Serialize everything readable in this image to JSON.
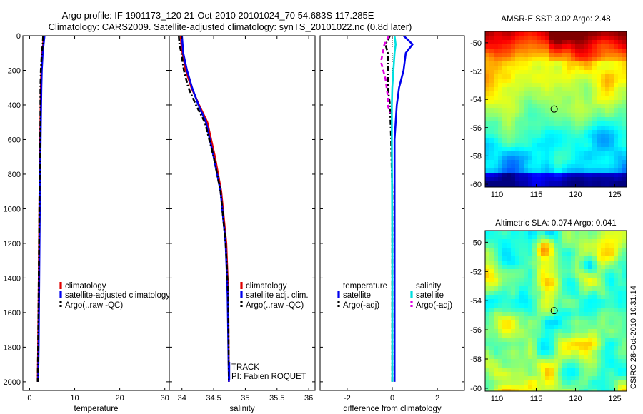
{
  "header": {
    "title_line1": "Argo profile: IF 1901173_120 21-Oct-2010 20101024_70 54.683S 117.285E",
    "title_line2": "Climatology: CARS2009. Satellite-adjusted climatology: synTS_20101022.nc (0.8d later)"
  },
  "colors": {
    "climatology": "#e00000",
    "satellite": "#0000ee",
    "argo": "#000000",
    "satellite_sal": "#00e0e0",
    "argo_sal": "#e000e0"
  },
  "chart_data": [
    {
      "id": "temperature",
      "type": "line",
      "xlabel": "temperature",
      "ylabel": "",
      "xlim": [
        -1.5,
        31
      ],
      "ylim": [
        2050,
        0
      ],
      "x_ticks": [
        0,
        10,
        20,
        30
      ],
      "y_ticks": [
        0,
        200,
        400,
        600,
        800,
        1000,
        1200,
        1400,
        1600,
        1800,
        2000
      ],
      "legend_location": "lower-middle",
      "series": [
        {
          "name": "climatology",
          "color": "climatology",
          "style": "solid",
          "x": [
            3.1,
            3.0,
            2.8,
            2.6,
            2.5,
            2.4,
            2.3,
            2.2,
            2.1,
            2.0,
            1.9,
            1.8
          ],
          "y": [
            0,
            50,
            100,
            200,
            300,
            500,
            700,
            900,
            1200,
            1500,
            1800,
            2000
          ]
        },
        {
          "name": "satellite-adjusted climatology",
          "color": "satellite",
          "style": "solid",
          "x": [
            3.3,
            3.1,
            2.9,
            2.7,
            2.6,
            2.5,
            2.4,
            2.3,
            2.2,
            2.1,
            2.0,
            1.9
          ],
          "y": [
            0,
            50,
            100,
            200,
            300,
            500,
            700,
            900,
            1200,
            1500,
            1800,
            2000
          ]
        },
        {
          "name": "Argo(..raw -QC)",
          "color": "argo",
          "style": "dashdot",
          "x": [
            3.0,
            2.9,
            2.7,
            2.5,
            2.4,
            2.4,
            2.3,
            2.2,
            2.1,
            2.0,
            1.9,
            1.8
          ],
          "y": [
            0,
            50,
            100,
            200,
            300,
            500,
            700,
            900,
            1200,
            1500,
            1800,
            2000
          ]
        }
      ]
    },
    {
      "id": "salinity",
      "type": "line",
      "xlabel": "salinity",
      "ylabel": "",
      "xlim": [
        33.8,
        36.1
      ],
      "ylim": [
        2050,
        0
      ],
      "x_ticks": [
        34,
        34.5,
        35,
        35.5,
        36
      ],
      "legend_location": "lower-middle",
      "series": [
        {
          "name": "climatology",
          "color": "climatology",
          "style": "solid",
          "x": [
            33.98,
            33.99,
            34.01,
            34.06,
            34.15,
            34.27,
            34.4,
            34.52,
            34.62,
            34.7,
            34.73,
            34.74
          ],
          "y": [
            0,
            50,
            100,
            200,
            300,
            400,
            500,
            700,
            900,
            1200,
            1500,
            2000
          ]
        },
        {
          "name": "satellite adj. clim.",
          "color": "satellite",
          "style": "solid",
          "x": [
            34.0,
            34.01,
            34.02,
            34.08,
            34.16,
            34.26,
            34.38,
            34.5,
            34.61,
            34.69,
            34.72,
            34.74
          ],
          "y": [
            0,
            50,
            100,
            200,
            300,
            400,
            500,
            700,
            900,
            1200,
            1500,
            2000
          ]
        },
        {
          "name": "Argo(..raw -QC)",
          "color": "argo",
          "style": "dashdot",
          "x": [
            33.95,
            33.96,
            33.99,
            34.03,
            34.1,
            34.22,
            34.36,
            34.5,
            34.61,
            34.69,
            34.73,
            34.74
          ],
          "y": [
            0,
            50,
            100,
            200,
            300,
            400,
            500,
            700,
            900,
            1200,
            1500,
            2000
          ]
        }
      ],
      "annotations": [
        "TRACK",
        "PI: Fabien ROQUET"
      ]
    },
    {
      "id": "difference",
      "type": "line",
      "xlabel": "difference from climatology",
      "ylabel": "",
      "xlim": [
        -3.2,
        3.2
      ],
      "ylim": [
        2050,
        0
      ],
      "x_ticks": [
        -2,
        0,
        2
      ],
      "legend_location": "lower-middle",
      "legend_titles": [
        "temperature",
        "salinity"
      ],
      "series": [
        {
          "name": "satellite",
          "group": "temperature",
          "color": "satellite",
          "style": "solid",
          "x": [
            0.5,
            0.9,
            0.6,
            0.5,
            0.3,
            0.2,
            0.1,
            0.1,
            0.1,
            0.1,
            0.1
          ],
          "y": [
            0,
            50,
            100,
            200,
            300,
            400,
            600,
            900,
            1200,
            1600,
            2000
          ]
        },
        {
          "name": "Argo(-adj)",
          "group": "temperature",
          "color": "argo",
          "style": "dashdot",
          "x": [
            -0.1,
            -0.3,
            -0.2,
            -0.2,
            -0.2,
            -0.1,
            -0.05,
            0.0,
            0.0,
            0.0,
            0.0
          ],
          "y": [
            0,
            50,
            100,
            200,
            300,
            400,
            600,
            900,
            1200,
            1600,
            2000
          ]
        },
        {
          "name": "satellite",
          "group": "salinity",
          "color": "satellite_sal",
          "style": "solid",
          "x": [
            0.1,
            0.15,
            0.1,
            0.05,
            0.0,
            -0.02,
            -0.02,
            -0.01,
            0.0,
            0.0,
            0.0
          ],
          "y": [
            0,
            50,
            100,
            200,
            300,
            400,
            600,
            900,
            1200,
            1600,
            2000
          ]
        },
        {
          "name": "Argo(-adj)",
          "group": "salinity",
          "color": "argo_sal",
          "style": "dashed",
          "x": [
            -0.15,
            -0.35,
            -0.5,
            -0.3,
            -0.2,
            -0.2,
            -0.1
          ],
          "y": [
            0,
            50,
            150,
            250,
            350,
            400,
            450
          ]
        }
      ]
    },
    {
      "id": "sst_map",
      "type": "heatmap",
      "title": "AMSR-E SST: 3.02 Argo: 2.48",
      "x_ticks": [
        110,
        115,
        120,
        125
      ],
      "y_ticks": [
        -50,
        -52,
        -54,
        -56,
        -58,
        -60
      ],
      "xlim": [
        108.5,
        126.5
      ],
      "ylim": [
        -60.2,
        -49.2
      ],
      "marker": {
        "lon": 117.285,
        "lat": -54.683
      }
    },
    {
      "id": "sla_map",
      "type": "heatmap",
      "title": "Altimetric SLA: 0.074 Argo: 0.041",
      "x_ticks": [
        110,
        115,
        120,
        125
      ],
      "y_ticks": [
        -50,
        -52,
        -54,
        -56,
        -58,
        -60
      ],
      "xlim": [
        108.5,
        126.5
      ],
      "ylim": [
        -60.2,
        -49.2
      ],
      "marker": {
        "lon": 117.285,
        "lat": -54.683
      }
    }
  ],
  "footer": {
    "stamp": "CSIRO 28-Oct-2010 10:31:14"
  }
}
